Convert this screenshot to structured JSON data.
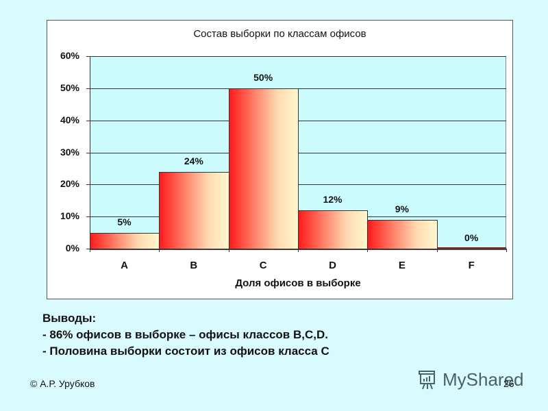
{
  "slide": {
    "background": "#d9fbfd",
    "conclusions": {
      "heading": "Выводы:",
      "items": [
        "- 86% офисов в выборке – офисы классов B,C,D.",
        "- Половина выборки состоит из офисов класса C"
      ]
    },
    "footer": {
      "author": "© А.Р. Урубков",
      "page_number": "26",
      "watermark": "MyShared",
      "watermark_icon": "presentation-board-icon"
    }
  },
  "chart_data": {
    "type": "bar",
    "title": "Состав выборки по классам офисов",
    "xlabel": "Доля офисов в выборке",
    "ylabel": "",
    "categories": [
      "A",
      "B",
      "C",
      "D",
      "E",
      "F"
    ],
    "values": [
      5,
      24,
      50,
      12,
      9,
      0
    ],
    "data_labels": [
      "5%",
      "24%",
      "50%",
      "12%",
      "9%",
      "0%"
    ],
    "ylim": [
      0,
      60
    ],
    "yticks": [
      "0%",
      "10%",
      "20%",
      "30%",
      "40%",
      "50%",
      "60%"
    ],
    "grid": true,
    "legend": null,
    "colors": {
      "plot_background": "#ccfbfd",
      "bar_gradient_start": "#ff1a1a",
      "bar_gradient_end": "#fff7cf"
    }
  }
}
